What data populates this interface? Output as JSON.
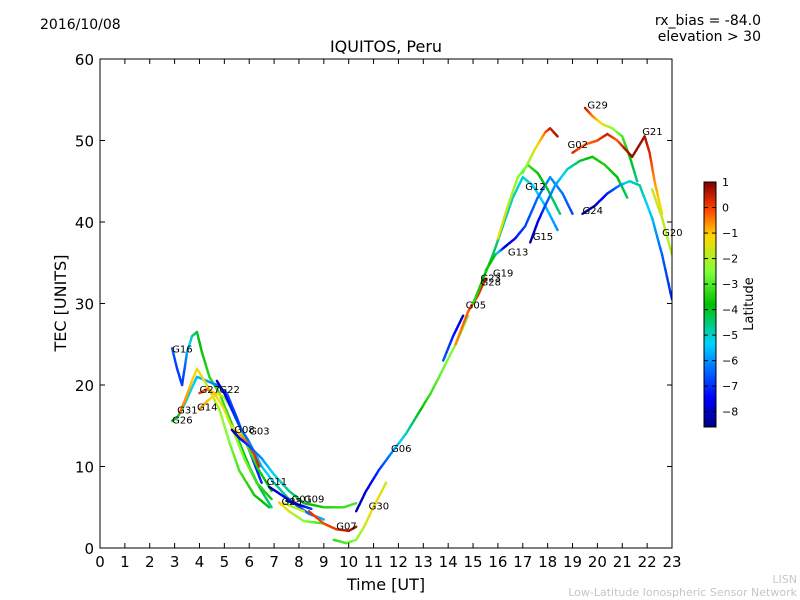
{
  "header": {
    "date": "2016/10/08",
    "rx_bias": "rx_bias = -84.0",
    "elevation": "elevation > 30"
  },
  "credit": {
    "line1": "LISN",
    "line2": "Low-Latitude Ionospheric Sensor Network"
  },
  "chart_data": {
    "type": "scatter",
    "title": "IQUITOS, Peru",
    "xlabel": "Time [UT]",
    "ylabel": "TEC [UNITS]",
    "xlim": [
      0,
      23
    ],
    "ylim": [
      0,
      60
    ],
    "xticks": [
      0,
      1,
      2,
      3,
      4,
      5,
      6,
      7,
      8,
      9,
      10,
      11,
      12,
      13,
      14,
      15,
      16,
      17,
      18,
      19,
      20,
      21,
      22,
      23
    ],
    "yticks": [
      0,
      10,
      20,
      30,
      40,
      50,
      60
    ],
    "grid": false,
    "colorbar": {
      "label": "Latitude",
      "range": [
        -8.6,
        1
      ],
      "ticks": [
        1,
        0,
        -1,
        -2,
        -3,
        -4,
        -5,
        -6,
        -7,
        -8
      ]
    },
    "series": [
      {
        "name": "G16",
        "points": [
          [
            2.9,
            24.5,
            -6.5
          ],
          [
            3.1,
            22,
            -6.8
          ],
          [
            3.3,
            20,
            -6.9
          ],
          [
            3.4,
            22,
            -6.6
          ],
          [
            3.5,
            24,
            -5.9
          ],
          [
            3.7,
            26,
            -4.8
          ],
          [
            3.9,
            26.5,
            -4.2
          ],
          [
            4.1,
            24,
            -3.7
          ],
          [
            4.4,
            21,
            -3.4
          ],
          [
            4.8,
            19,
            -3.2
          ],
          [
            5.2,
            16,
            -3.4
          ],
          [
            5.6,
            13,
            -3.6
          ],
          [
            6.0,
            10,
            -3.9
          ],
          [
            6.4,
            7.5,
            -4.3
          ],
          [
            6.9,
            5,
            -4.6
          ]
        ]
      },
      {
        "name": "G26",
        "points": [
          [
            2.9,
            15.6,
            -3.5
          ],
          [
            3.1,
            16,
            -4.2
          ],
          [
            3.3,
            17,
            -4.7
          ],
          [
            3.6,
            19,
            -5.1
          ],
          [
            3.9,
            21,
            -5.6
          ],
          [
            4.3,
            20.5,
            -5.9
          ],
          [
            4.7,
            20,
            -6.2
          ],
          [
            5.1,
            19,
            -6.6
          ],
          [
            5.5,
            16,
            -6.8
          ],
          [
            6.0,
            12,
            -7.0
          ],
          [
            6.5,
            8,
            -7.1
          ]
        ]
      },
      {
        "name": "G31",
        "points": [
          [
            3.2,
            16.5,
            -0.3
          ],
          [
            3.4,
            18,
            -0.6
          ],
          [
            3.7,
            20.5,
            -1.0
          ],
          [
            3.9,
            22,
            -1.3
          ],
          [
            4.3,
            20,
            -1.6
          ],
          [
            4.8,
            17,
            -2.1
          ],
          [
            5.2,
            13,
            -2.6
          ],
          [
            5.6,
            9.5,
            -3.1
          ],
          [
            6.2,
            6.5,
            -3.6
          ],
          [
            6.8,
            5,
            -4.0
          ]
        ]
      },
      {
        "name": "G14",
        "points": [
          [
            4.0,
            17,
            -0.5
          ],
          [
            4.3,
            18,
            -0.9
          ],
          [
            4.7,
            19,
            -1.4
          ],
          [
            5.0,
            18.5,
            -1.9
          ],
          [
            5.3,
            17,
            -2.4
          ],
          [
            5.6,
            15,
            -2.8
          ],
          [
            6.0,
            12,
            -3.1
          ],
          [
            6.4,
            9.5,
            -3.5
          ],
          [
            6.9,
            7,
            -4.0
          ]
        ]
      },
      {
        "name": "G27",
        "points": [
          [
            4.0,
            19,
            0.2
          ],
          [
            4.3,
            19.5,
            -0.3
          ],
          [
            4.6,
            19,
            -0.9
          ],
          [
            5.0,
            17,
            -1.5
          ],
          [
            5.4,
            14,
            -2.1
          ],
          [
            5.8,
            11,
            -2.7
          ],
          [
            6.3,
            8,
            -3.2
          ],
          [
            6.9,
            6,
            -3.7
          ]
        ]
      },
      {
        "name": "G22",
        "points": [
          [
            4.7,
            20.5,
            -8.0
          ],
          [
            5.0,
            19,
            -7.7
          ],
          [
            5.3,
            17,
            -7.2
          ],
          [
            5.6,
            15,
            -6.8
          ],
          [
            6.0,
            13,
            -6.2
          ],
          [
            6.5,
            10,
            -5.6
          ],
          [
            7.0,
            8,
            -5.0
          ],
          [
            7.6,
            6,
            -4.4
          ],
          [
            8.2,
            4.5,
            -3.8
          ]
        ]
      },
      {
        "name": "G08",
        "points": [
          [
            5.3,
            15,
            -1.5
          ],
          [
            5.6,
            14,
            -0.9
          ],
          [
            5.9,
            13,
            -0.3
          ],
          [
            6.2,
            11.5,
            0.1
          ],
          [
            6.4,
            10,
            0.4
          ]
        ]
      },
      {
        "name": "G03",
        "points": [
          [
            5.3,
            14.5,
            -8.3
          ],
          [
            5.6,
            13.5,
            -7.6
          ],
          [
            6.0,
            12.5,
            -6.8
          ],
          [
            6.5,
            11,
            -6.0
          ],
          [
            7.0,
            9,
            -5.3
          ],
          [
            7.6,
            7,
            -4.6
          ],
          [
            8.2,
            5.5,
            -4.0
          ],
          [
            9.0,
            5,
            -3.5
          ],
          [
            9.8,
            5,
            -3.2
          ],
          [
            10.3,
            5.5,
            -3.0
          ]
        ]
      },
      {
        "name": "G11",
        "points": [
          [
            6.8,
            7.5,
            -8.4
          ],
          [
            7.3,
            6.5,
            -7.6
          ],
          [
            7.8,
            5.5,
            -7.0
          ],
          [
            8.4,
            4.2,
            -6.3
          ],
          [
            9.0,
            3.5,
            -5.6
          ]
        ]
      },
      {
        "name": "G01",
        "points": [
          [
            7.4,
            5.5,
            -2.2
          ],
          [
            7.8,
            5,
            -2.0
          ],
          [
            8.2,
            4.5,
            -1.7
          ]
        ]
      },
      {
        "name": "G09",
        "points": [
          [
            7.5,
            5.8,
            -8.3
          ],
          [
            8.0,
            5.3,
            -7.8
          ],
          [
            8.5,
            4.8,
            -6.8
          ]
        ]
      },
      {
        "name": "G23",
        "points": [
          [
            7.2,
            5.6,
            -0.9
          ],
          [
            7.6,
            4.5,
            -1.6
          ],
          [
            8.2,
            3.3,
            -2.5
          ],
          [
            9.0,
            3,
            -3.2
          ]
        ]
      },
      {
        "name": "G07",
        "points": [
          [
            8.4,
            4.5,
            0.2
          ],
          [
            9.0,
            3,
            -0.1
          ],
          [
            9.5,
            2.3,
            0.1
          ],
          [
            10.0,
            2.1,
            0.6
          ],
          [
            10.3,
            2.6,
            0.8
          ]
        ]
      },
      {
        "name": "G30",
        "points": [
          [
            9.4,
            1,
            -3.3
          ],
          [
            9.9,
            0.6,
            -3.0
          ],
          [
            10.3,
            1,
            -2.5
          ],
          [
            10.6,
            2.5,
            -1.8
          ],
          [
            11.0,
            5,
            -1.2
          ],
          [
            11.5,
            8,
            -1.6
          ]
        ]
      },
      {
        "name": "G06",
        "points": [
          [
            10.3,
            4.5,
            -8.3
          ],
          [
            10.7,
            7,
            -7.8
          ],
          [
            11.2,
            9.5,
            -7.0
          ],
          [
            11.8,
            12,
            -6.0
          ],
          [
            12.3,
            14,
            -5.0
          ],
          [
            12.8,
            16.5,
            -4.0
          ],
          [
            13.3,
            19,
            -3.2
          ],
          [
            13.8,
            22,
            -2.7
          ],
          [
            14.3,
            25,
            -2.4
          ],
          [
            14.8,
            28.5,
            -2.6
          ]
        ]
      },
      {
        "name": "G05",
        "points": [
          [
            13.8,
            23,
            -6.5
          ],
          [
            14.2,
            26,
            -7.2
          ],
          [
            14.6,
            28.5,
            -8.0
          ]
        ]
      },
      {
        "name": "G28",
        "points": [
          [
            14.3,
            25,
            -0.6
          ],
          [
            14.8,
            29,
            -0.2
          ],
          [
            15.2,
            31,
            0.1
          ],
          [
            15.5,
            33,
            0.3
          ]
        ]
      },
      {
        "name": "G19",
        "points": [
          [
            15.0,
            30,
            -3.3
          ],
          [
            15.4,
            33,
            -3.7
          ],
          [
            15.8,
            36,
            -4.3
          ],
          [
            16.2,
            39.5,
            -4.8
          ],
          [
            16.6,
            43,
            -5.0
          ],
          [
            17.0,
            45.5,
            -5.0
          ],
          [
            17.4,
            44.5,
            -5.2
          ],
          [
            17.9,
            42,
            -5.5
          ],
          [
            18.4,
            39,
            -6.0
          ]
        ]
      },
      {
        "name": "G13",
        "points": [
          [
            15.5,
            34,
            -3.5
          ],
          [
            15.9,
            36,
            -4.0
          ],
          [
            16.3,
            37,
            -8.0
          ],
          [
            16.7,
            38,
            -7.3
          ],
          [
            17.1,
            39.5,
            -6.8
          ],
          [
            17.6,
            43,
            -6.4
          ],
          [
            18.1,
            45.5,
            -6.0
          ],
          [
            18.6,
            43.5,
            -6.3
          ],
          [
            19.0,
            41,
            -6.8
          ]
        ]
      },
      {
        "name": "G12",
        "points": [
          [
            16.0,
            38,
            -1.2
          ],
          [
            16.4,
            42,
            -1.7
          ],
          [
            16.8,
            45.5,
            -2.4
          ],
          [
            17.2,
            47,
            -3.1
          ],
          [
            17.6,
            46,
            -3.7
          ],
          [
            18.0,
            44,
            -4.2
          ],
          [
            18.5,
            41,
            -4.6
          ]
        ]
      },
      {
        "name": "G15",
        "points": [
          [
            17.3,
            37.5,
            -8.3
          ],
          [
            17.6,
            40,
            -7.6
          ],
          [
            17.9,
            42,
            -6.8
          ],
          [
            18.3,
            44.5,
            -5.9
          ],
          [
            18.8,
            46.5,
            -5.0
          ],
          [
            19.3,
            47.5,
            -4.3
          ],
          [
            19.8,
            48,
            -3.7
          ],
          [
            20.3,
            47,
            -3.5
          ],
          [
            20.8,
            45.5,
            -3.8
          ],
          [
            21.2,
            43,
            -4.4
          ]
        ]
      },
      {
        "name": "G02",
        "points": [
          [
            17.0,
            46,
            -2.8
          ],
          [
            17.5,
            49,
            -1.5
          ],
          [
            17.9,
            51,
            -0.4
          ],
          [
            18.1,
            51.5,
            0.4
          ],
          [
            18.4,
            50.5,
            0.7
          ]
        ]
      },
      {
        "name": "G29",
        "points": [
          [
            19.5,
            54,
            0.6
          ],
          [
            19.8,
            53,
            -0.4
          ],
          [
            20.2,
            52,
            -1.4
          ],
          [
            20.6,
            51.5,
            -2.2
          ],
          [
            21.0,
            50.5,
            -3.0
          ],
          [
            21.3,
            48,
            -3.8
          ],
          [
            21.6,
            45,
            -4.6
          ]
        ]
      },
      {
        "name": "G24",
        "points": [
          [
            19.4,
            41,
            -8.4
          ],
          [
            19.9,
            42,
            -8.0
          ],
          [
            20.4,
            43.5,
            -7.2
          ],
          [
            20.9,
            44.5,
            -6.2
          ],
          [
            21.3,
            45,
            -5.0
          ],
          [
            21.7,
            44.5,
            -4.7
          ],
          [
            22.2,
            40.5,
            -5.6
          ],
          [
            22.6,
            36,
            -6.5
          ],
          [
            23.0,
            30.5,
            -7.1
          ]
        ]
      },
      {
        "name": "G21",
        "points": [
          [
            19.0,
            48.5,
            0.4
          ],
          [
            19.5,
            49.5,
            -0.4
          ],
          [
            20.0,
            50,
            -0.1
          ],
          [
            20.4,
            50.8,
            0.5
          ],
          [
            20.8,
            50,
            -0.3
          ],
          [
            21.1,
            49,
            0.5
          ],
          [
            21.4,
            48,
            0.8
          ],
          [
            21.9,
            50.5,
            0.7
          ],
          [
            22.1,
            48.5,
            0.3
          ],
          [
            22.3,
            45,
            -0.6
          ],
          [
            22.6,
            41,
            -1.3
          ]
        ]
      },
      {
        "name": "G20",
        "points": [
          [
            22.2,
            44,
            -1.6
          ],
          [
            22.6,
            40.5,
            -1.8
          ],
          [
            23.0,
            36,
            -1.9
          ]
        ]
      }
    ],
    "labels": [
      {
        "text": "G16",
        "x": 2.9,
        "y": 24
      },
      {
        "text": "G26",
        "x": 2.9,
        "y": 15.3
      },
      {
        "text": "G31",
        "x": 3.1,
        "y": 16.5
      },
      {
        "text": "G14",
        "x": 3.9,
        "y": 16.9
      },
      {
        "text": "G27",
        "x": 4.0,
        "y": 19
      },
      {
        "text": "G22",
        "x": 4.8,
        "y": 19
      },
      {
        "text": "G08",
        "x": 5.4,
        "y": 14.1
      },
      {
        "text": "G03",
        "x": 6.0,
        "y": 13.9
      },
      {
        "text": "G11",
        "x": 6.7,
        "y": 7.7
      },
      {
        "text": "G23",
        "x": 7.3,
        "y": 5.3
      },
      {
        "text": "G01",
        "x": 7.7,
        "y": 5.6
      },
      {
        "text": "G09",
        "x": 8.2,
        "y": 5.6
      },
      {
        "text": "G07",
        "x": 9.5,
        "y": 2.3
      },
      {
        "text": "G30",
        "x": 10.8,
        "y": 4.7
      },
      {
        "text": "G06",
        "x": 11.7,
        "y": 11.8
      },
      {
        "text": "G05",
        "x": 14.7,
        "y": 29.4
      },
      {
        "text": "G19",
        "x": 15.8,
        "y": 33.3
      },
      {
        "text": "G23",
        "x": 15.3,
        "y": 32.7
      },
      {
        "text": "G28",
        "x": 15.3,
        "y": 32.2
      },
      {
        "text": "G13",
        "x": 16.4,
        "y": 35.9
      },
      {
        "text": "G12",
        "x": 17.1,
        "y": 43.9
      },
      {
        "text": "G15",
        "x": 17.4,
        "y": 37.8
      },
      {
        "text": "G02",
        "x": 18.8,
        "y": 49.1
      },
      {
        "text": "G29",
        "x": 19.6,
        "y": 53.9
      },
      {
        "text": "G24",
        "x": 19.4,
        "y": 41
      },
      {
        "text": "G21",
        "x": 21.8,
        "y": 50.7
      },
      {
        "text": "G20",
        "x": 22.6,
        "y": 38.3
      }
    ]
  }
}
